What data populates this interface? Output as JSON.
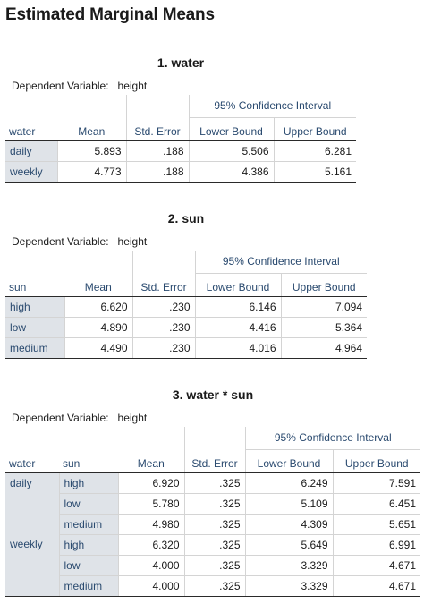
{
  "page_title": "Estimated Marginal Means",
  "dep_label": "Dependent Variable:",
  "dep_value": "height",
  "t1": {
    "title": "1. water",
    "factor": "water",
    "headers": {
      "mean": "Mean",
      "se": "Std. Error",
      "ci": "95% Confidence Interval",
      "lb": "Lower Bound",
      "ub": "Upper Bound"
    },
    "rows": [
      {
        "label": "daily",
        "mean": "5.893",
        "se": ".188",
        "lb": "5.506",
        "ub": "6.281"
      },
      {
        "label": "weekly",
        "mean": "4.773",
        "se": ".188",
        "lb": "4.386",
        "ub": "5.161"
      }
    ]
  },
  "t2": {
    "title": "2. sun",
    "factor": "sun",
    "headers": {
      "mean": "Mean",
      "se": "Std. Error",
      "ci": "95% Confidence Interval",
      "lb": "Lower Bound",
      "ub": "Upper Bound"
    },
    "rows": [
      {
        "label": "high",
        "mean": "6.620",
        "se": ".230",
        "lb": "6.146",
        "ub": "7.094"
      },
      {
        "label": "low",
        "mean": "4.890",
        "se": ".230",
        "lb": "4.416",
        "ub": "5.364"
      },
      {
        "label": "medium",
        "mean": "4.490",
        "se": ".230",
        "lb": "4.016",
        "ub": "4.964"
      }
    ]
  },
  "t3": {
    "title": "3. water * sun",
    "factor1": "water",
    "factor2": "sun",
    "headers": {
      "mean": "Mean",
      "se": "Std. Error",
      "ci": "95% Confidence Interval",
      "lb": "Lower Bound",
      "ub": "Upper Bound"
    },
    "groups": [
      {
        "label": "daily",
        "rows": [
          {
            "label": "high",
            "mean": "6.920",
            "se": ".325",
            "lb": "6.249",
            "ub": "7.591"
          },
          {
            "label": "low",
            "mean": "5.780",
            "se": ".325",
            "lb": "5.109",
            "ub": "6.451"
          },
          {
            "label": "medium",
            "mean": "4.980",
            "se": ".325",
            "lb": "4.309",
            "ub": "5.651"
          }
        ]
      },
      {
        "label": "weekly",
        "rows": [
          {
            "label": "high",
            "mean": "6.320",
            "se": ".325",
            "lb": "5.649",
            "ub": "6.991"
          },
          {
            "label": "low",
            "mean": "4.000",
            "se": ".325",
            "lb": "3.329",
            "ub": "4.671"
          },
          {
            "label": "medium",
            "mean": "4.000",
            "se": ".325",
            "lb": "3.329",
            "ub": "4.671"
          }
        ]
      }
    ]
  }
}
